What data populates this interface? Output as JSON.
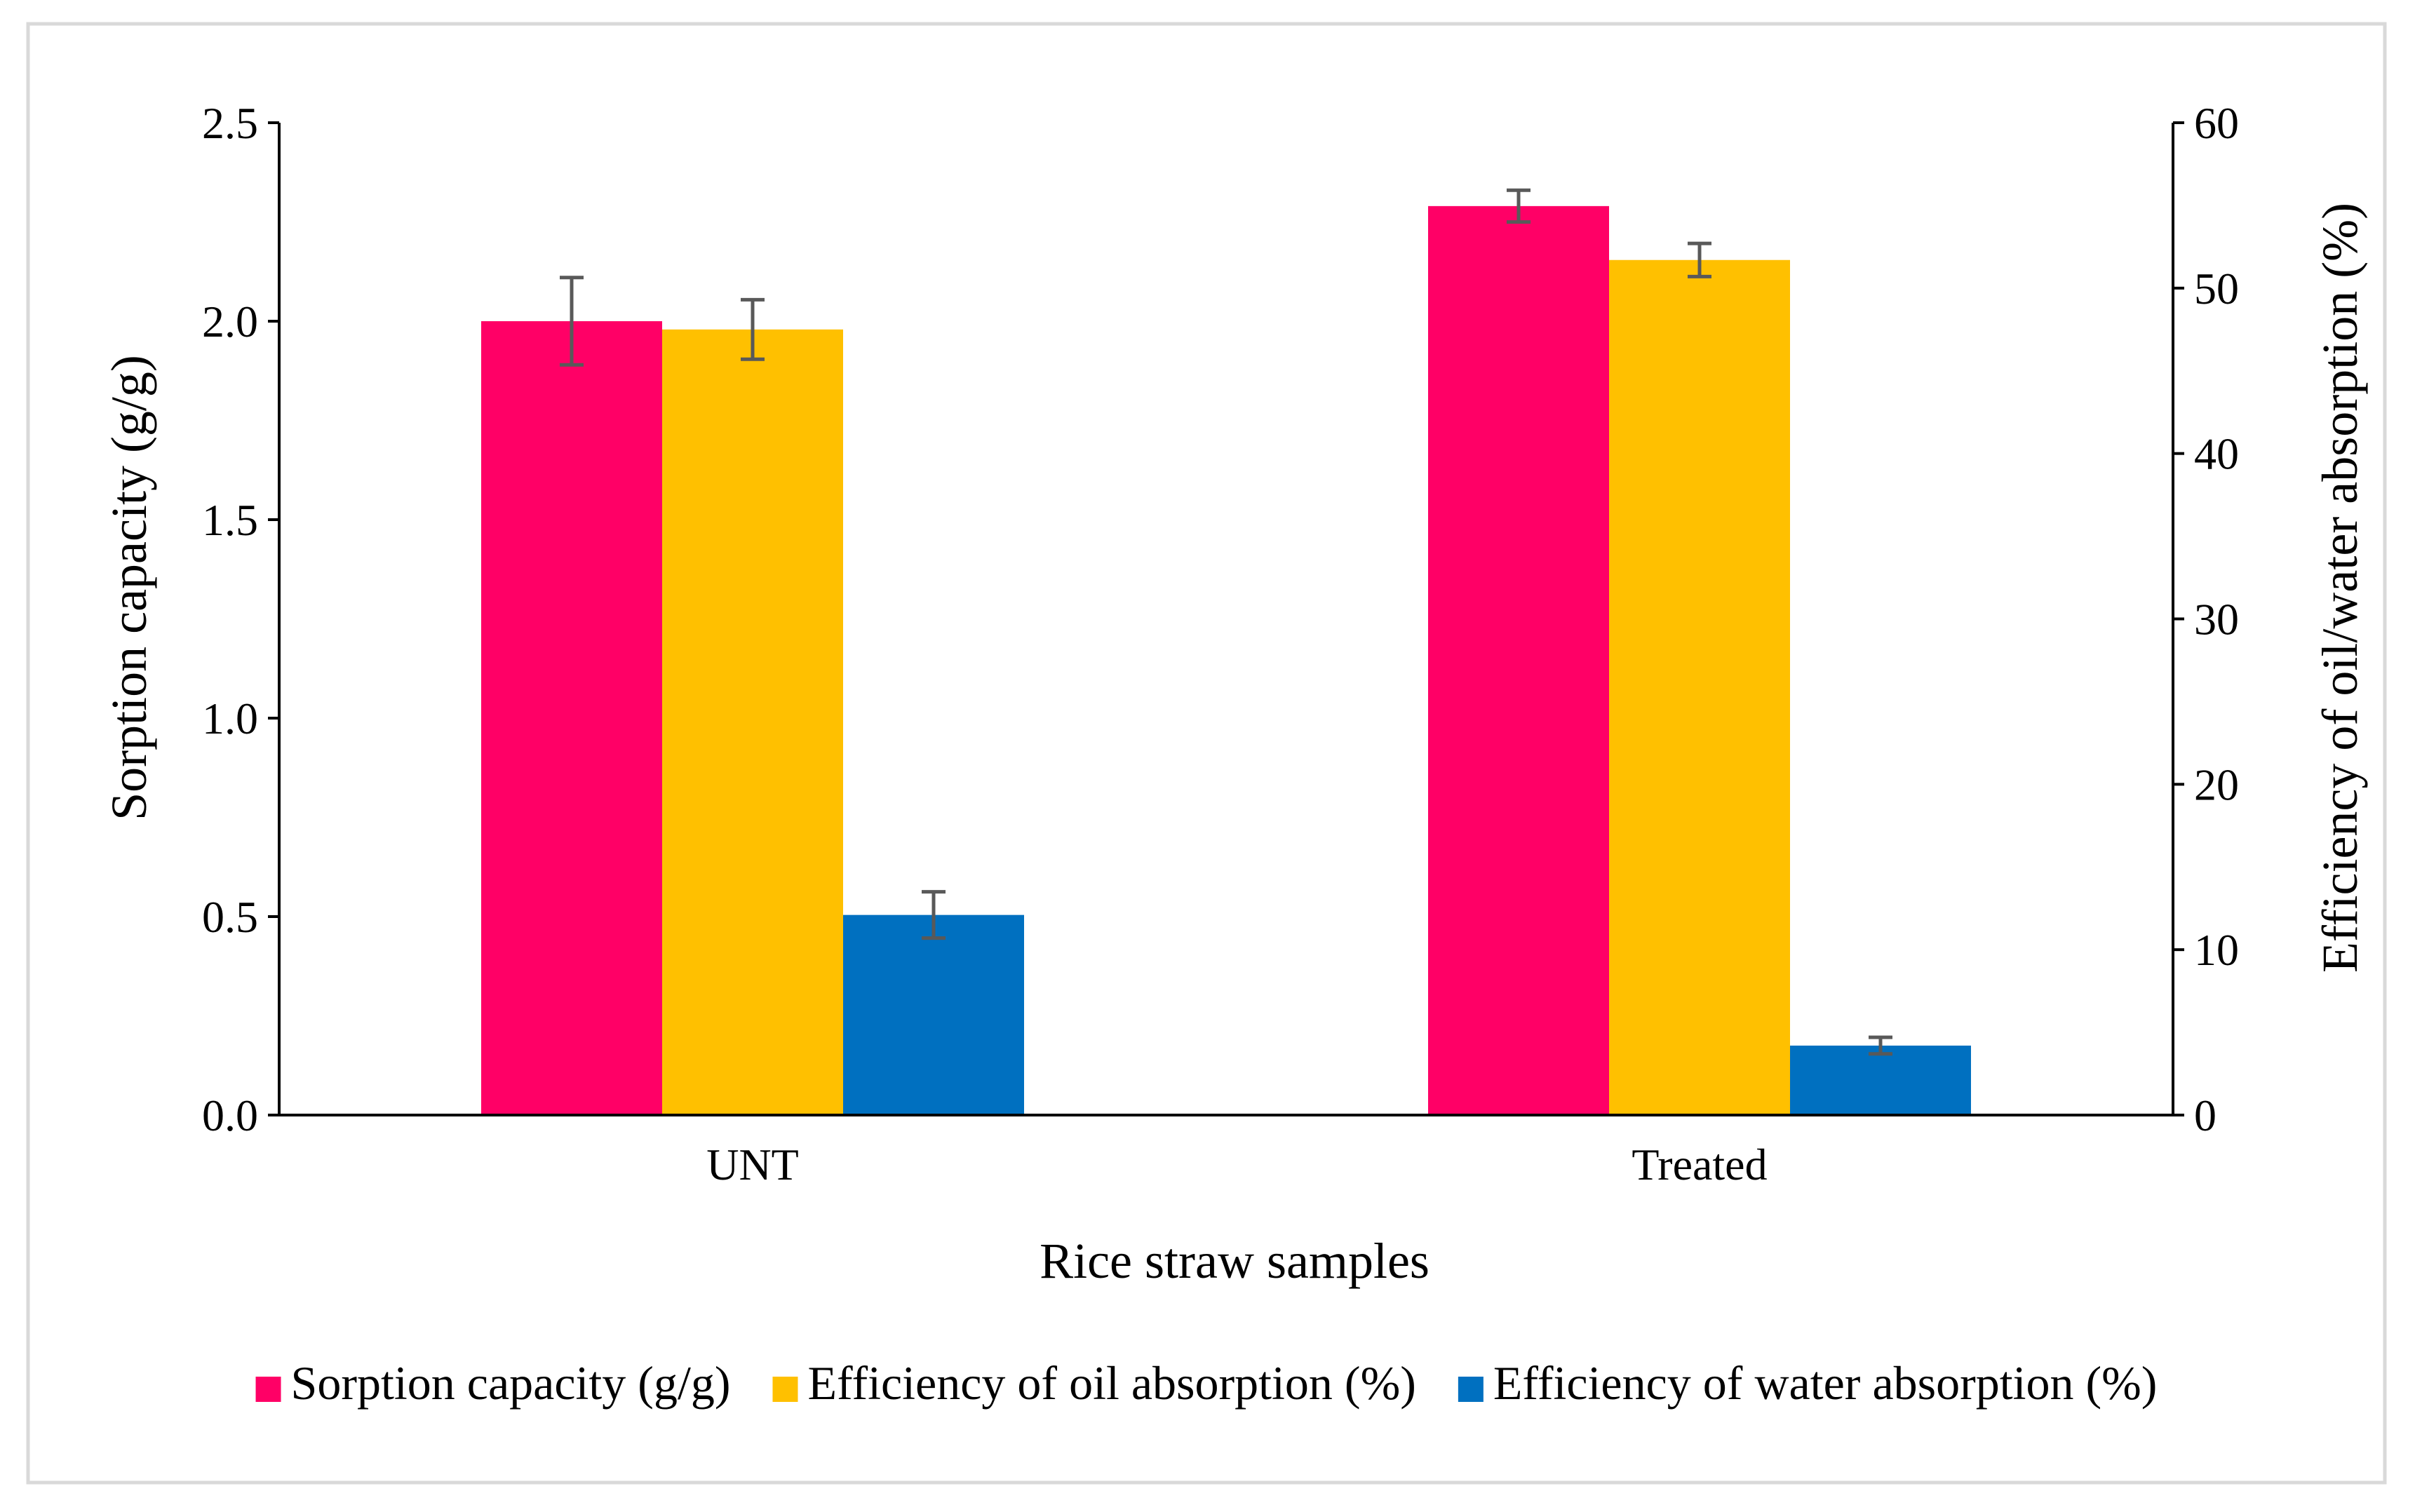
{
  "chart_data": {
    "type": "bar",
    "categories": [
      "UNT",
      "Treated"
    ],
    "xlabel": "Rice straw samples",
    "ylabel": "Sorption capacity (g/g)",
    "y2label": "Efficiency of oil/water absorption (%)",
    "ylim": [
      0,
      2.5
    ],
    "y_ticks": [
      "0.0",
      "0.5",
      "1.0",
      "1.5",
      "2.0",
      "2.5"
    ],
    "y2lim": [
      0,
      60
    ],
    "y2_ticks": [
      "0",
      "10",
      "20",
      "30",
      "40",
      "50",
      "60"
    ],
    "legend_position": "bottom",
    "grid": false,
    "series": [
      {
        "name": "Sorption capacity (g/g)",
        "axis": "left",
        "color": "#FF0066",
        "values": [
          2.0,
          2.29
        ],
        "errors": [
          0.11,
          0.04
        ]
      },
      {
        "name": "Efficiency of oil absorption (%)",
        "axis": "right",
        "color": "#FFC000",
        "values": [
          47.5,
          51.7
        ],
        "errors": [
          1.8,
          1.0
        ]
      },
      {
        "name": "Efficiency of water absorption (%)",
        "axis": "right",
        "color": "#0070C0",
        "values": [
          12.1,
          4.2
        ],
        "errors": [
          1.4,
          0.5
        ]
      }
    ]
  }
}
